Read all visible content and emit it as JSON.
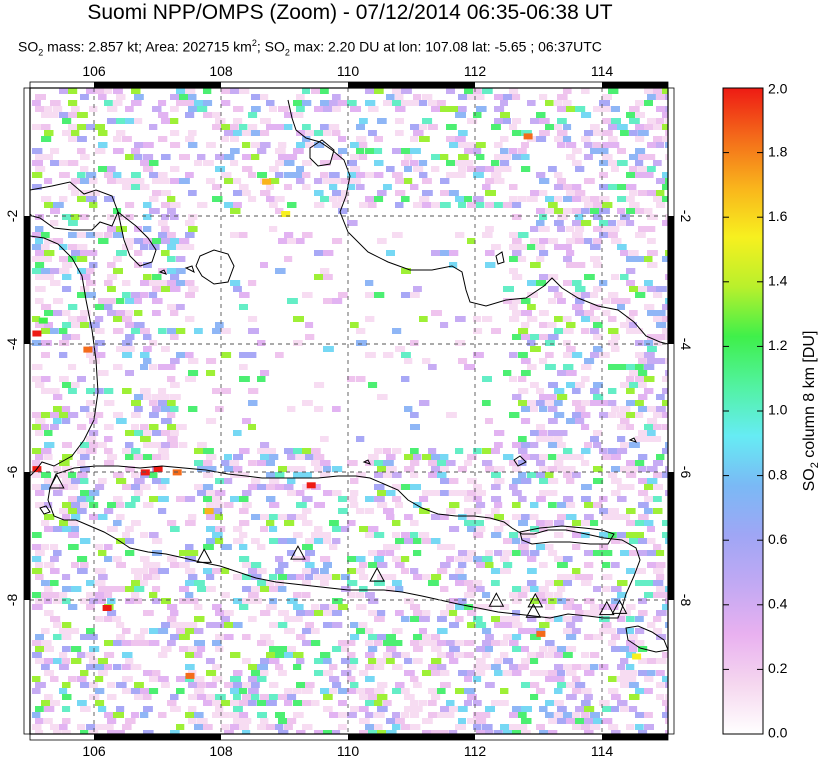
{
  "header": {
    "title": "Suomi NPP/OMPS (Zoom) - 07/12/2014 06:35-06:38 UT",
    "subtitle_parts": {
      "so2_prefix": "SO",
      "so2_sub": "2",
      "mass_text": " mass: 2.857 kt; Area: 202715 km",
      "area_sup": "2",
      "sep_text": "; SO",
      "so2_sub2": "2",
      "max_text": " max: 2.20 DU at lon: 107.08 lat: -5.65 ; 06:37UTC"
    }
  },
  "map": {
    "lon_ticks": [
      "106",
      "108",
      "110",
      "112",
      "114"
    ],
    "lat_ticks": [
      "-2",
      "-4",
      "-6",
      "-8"
    ],
    "lon_range": [
      105,
      115
    ],
    "lat_range": [
      -10,
      0
    ],
    "volcano_marker": "triangle-icon",
    "volcanoes": [
      {
        "lon": 105.42,
        "lat": -6.1
      },
      {
        "lon": 107.73,
        "lat": -7.25
      },
      {
        "lon": 109.2,
        "lat": -7.2
      },
      {
        "lon": 110.44,
        "lat": -7.54
      },
      {
        "lon": 112.31,
        "lat": -7.93
      },
      {
        "lon": 112.92,
        "lat": -7.94
      },
      {
        "lon": 112.89,
        "lat": -8.1
      },
      {
        "lon": 114.04,
        "lat": -8.06
      },
      {
        "lon": 114.24,
        "lat": -8.04
      }
    ]
  },
  "colorbar": {
    "label_parts": {
      "a": "SO",
      "sub": "2",
      "b": " column 8 km [DU]"
    },
    "tick_labels": [
      "0.0",
      "0.2",
      "0.4",
      "0.6",
      "0.8",
      "1.0",
      "1.2",
      "1.4",
      "1.6",
      "1.8",
      "2.0"
    ],
    "range": [
      0,
      2
    ],
    "colors": [
      "#ffffff",
      "#f5d7ef",
      "#e9b1f0",
      "#c2a9f3",
      "#9fa6f5",
      "#7ab9f5",
      "#66ecf4",
      "#52f2a1",
      "#3ff04a",
      "#b9f02c",
      "#f7f01f",
      "#f9b41c",
      "#f46b1a",
      "#ee1b14"
    ]
  }
}
